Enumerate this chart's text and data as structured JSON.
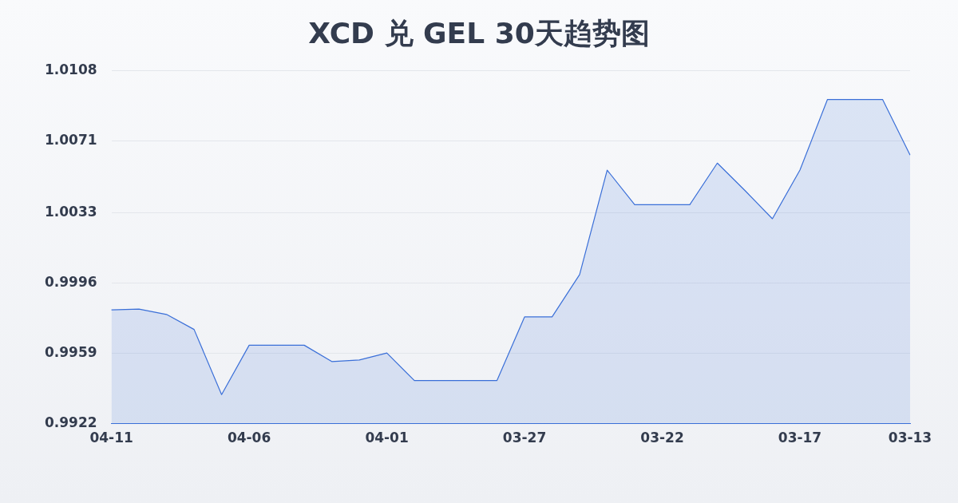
{
  "chart_data": {
    "type": "area",
    "title": "XCD 兑 GEL 30天趋势图",
    "categories": [
      "04-11",
      null,
      null,
      null,
      null,
      "04-06",
      null,
      null,
      null,
      null,
      "04-01",
      null,
      null,
      null,
      null,
      "03-27",
      null,
      null,
      null,
      null,
      "03-22",
      null,
      null,
      null,
      null,
      "03-17",
      null,
      null,
      null,
      "03-13"
    ],
    "series": [
      {
        "color": "#3a6fd8",
        "values": [
          0.99819,
          0.99823,
          0.99795,
          0.99716,
          0.99373,
          0.99633,
          0.99633,
          0.99633,
          0.99547,
          0.99555,
          0.99592,
          0.99447,
          0.99447,
          0.99447,
          0.99447,
          0.99782,
          0.99782,
          1.00005,
          1.00555,
          1.00373,
          1.00373,
          1.00373,
          1.00592,
          1.00448,
          1.00299,
          1.00555,
          1.00927,
          1.00927,
          1.00927,
          1.00634
        ]
      }
    ],
    "ylim": [
      0.9922,
      1.0108
    ],
    "yticks": [
      0.9922,
      0.9959,
      0.9996,
      1.0033,
      1.0071,
      1.0108
    ],
    "grid": "y",
    "legend": false,
    "marker": "none",
    "line_style": "solid"
  }
}
